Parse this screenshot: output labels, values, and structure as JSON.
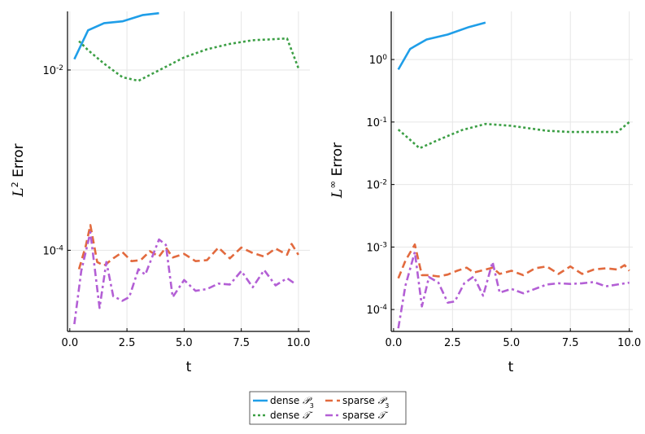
{
  "chart_data": [
    {
      "type": "line",
      "yscale": "log",
      "xlim": [
        -0.1,
        10.5
      ],
      "ylim_exp": [
        -4.9,
        -1.35
      ],
      "xticks": [
        0.0,
        2.5,
        5.0,
        7.5,
        10.0
      ],
      "xtick_labels": [
        "0.0",
        "2.5",
        "5.0",
        "7.5",
        "10.0"
      ],
      "yticks_exp": [
        -4,
        -2
      ],
      "ytick_labels": [
        "10",
        "10"
      ],
      "ytick_exp_labels": [
        "-4",
        "-2"
      ],
      "xlabel": "t",
      "ylabel_base": "L",
      "ylabel_sup": "2",
      "ylabel_rest": " Error",
      "grid": true,
      "series": [
        {
          "name": "dense P3",
          "color": "#1f9ee8",
          "dash": "solid",
          "x": [
            0.2,
            0.8,
            1.5,
            2.3,
            3.2,
            3.9
          ],
          "logy": [
            -1.88,
            -1.56,
            -1.48,
            -1.46,
            -1.39,
            -1.37
          ]
        },
        {
          "name": "dense T",
          "color": "#3c9f45",
          "dash": "dot",
          "x": [
            0.4,
            0.8,
            1.5,
            2.3,
            3.0,
            4.0,
            5.0,
            6.0,
            7.0,
            8.0,
            8.8,
            9.5,
            10.0
          ],
          "logy": [
            -1.68,
            -1.78,
            -1.93,
            -2.08,
            -2.12,
            -1.99,
            -1.86,
            -1.77,
            -1.71,
            -1.67,
            -1.66,
            -1.65,
            -1.98
          ]
        },
        {
          "name": "sparse P3",
          "color": "#e26a3e",
          "dash": "dash",
          "x": [
            0.4,
            0.7,
            0.9,
            1.2,
            1.5,
            1.9,
            2.3,
            2.7,
            3.1,
            3.5,
            3.9,
            4.2,
            4.5,
            5.0,
            5.5,
            6.0,
            6.5,
            7.0,
            7.5,
            8.0,
            8.5,
            9.0,
            9.5,
            9.7,
            10.0
          ],
          "logy": [
            -4.21,
            -3.95,
            -3.72,
            -4.13,
            -4.17,
            -4.09,
            -4.02,
            -4.12,
            -4.11,
            -4.01,
            -4.07,
            -3.97,
            -4.08,
            -4.04,
            -4.12,
            -4.11,
            -3.97,
            -4.09,
            -3.97,
            -4.03,
            -4.07,
            -3.98,
            -4.05,
            -3.93,
            -4.05
          ]
        },
        {
          "name": "sparse T",
          "color": "#b35fd5",
          "dash": "dashdot",
          "x": [
            0.2,
            0.5,
            0.9,
            1.3,
            1.6,
            1.9,
            2.3,
            2.6,
            3.0,
            3.3,
            3.9,
            4.2,
            4.5,
            5.0,
            5.5,
            6.0,
            6.5,
            7.0,
            7.5,
            8.0,
            8.5,
            9.0,
            9.5,
            9.9
          ],
          "logy": [
            -4.82,
            -4.23,
            -3.8,
            -4.64,
            -4.13,
            -4.51,
            -4.56,
            -4.52,
            -4.21,
            -4.27,
            -3.88,
            -3.94,
            -4.52,
            -4.33,
            -4.45,
            -4.43,
            -4.37,
            -4.38,
            -4.23,
            -4.41,
            -4.22,
            -4.39,
            -4.31,
            -4.38
          ]
        }
      ]
    },
    {
      "type": "line",
      "yscale": "log",
      "xlim": [
        -0.1,
        10.15
      ],
      "ylim_exp": [
        -4.35,
        0.77
      ],
      "xticks": [
        0.0,
        2.5,
        5.0,
        7.5,
        10.0
      ],
      "xtick_labels": [
        "0.0",
        "2.5",
        "5.0",
        "7.5",
        "10.0"
      ],
      "yticks_exp": [
        -4,
        -3,
        -2,
        -1,
        0
      ],
      "ytick_labels": [
        "10",
        "10",
        "10",
        "10",
        "10"
      ],
      "ytick_exp_labels": [
        "-4",
        "-3",
        "-2",
        "-1",
        "0"
      ],
      "xlabel": "t",
      "ylabel_base": "L",
      "ylabel_sup": "∞",
      "ylabel_rest": " Error",
      "grid": true,
      "series": [
        {
          "name": "dense P3",
          "color": "#1f9ee8",
          "dash": "solid",
          "x": [
            0.2,
            0.7,
            1.4,
            2.3,
            3.2,
            3.9
          ],
          "logy": [
            -0.16,
            0.17,
            0.32,
            0.4,
            0.52,
            0.59
          ]
        },
        {
          "name": "dense T",
          "color": "#3c9f45",
          "dash": "dot",
          "x": [
            0.2,
            0.6,
            1.1,
            2.0,
            2.9,
            3.9,
            5.0,
            6.5,
            7.5,
            8.5,
            9.5,
            10.0
          ],
          "logy": [
            -1.12,
            -1.25,
            -1.42,
            -1.27,
            -1.13,
            -1.03,
            -1.06,
            -1.14,
            -1.16,
            -1.16,
            -1.16,
            -1.0
          ]
        },
        {
          "name": "sparse P3",
          "color": "#e26a3e",
          "dash": "dash",
          "x": [
            0.2,
            0.5,
            0.9,
            1.2,
            1.5,
            1.9,
            2.3,
            2.7,
            3.1,
            3.4,
            3.8,
            4.2,
            4.5,
            5.0,
            5.5,
            6.0,
            6.5,
            7.0,
            7.5,
            8.0,
            8.5,
            9.0,
            9.5,
            9.8,
            10.0
          ],
          "logy": [
            -3.5,
            -3.22,
            -2.96,
            -3.45,
            -3.45,
            -3.47,
            -3.44,
            -3.38,
            -3.33,
            -3.41,
            -3.37,
            -3.33,
            -3.43,
            -3.38,
            -3.45,
            -3.34,
            -3.31,
            -3.43,
            -3.31,
            -3.43,
            -3.36,
            -3.34,
            -3.36,
            -3.29,
            -3.38
          ]
        },
        {
          "name": "sparse T",
          "color": "#b35fd5",
          "dash": "dashdot",
          "x": [
            0.2,
            0.5,
            0.9,
            1.2,
            1.5,
            1.9,
            2.3,
            2.6,
            3.0,
            3.4,
            3.8,
            4.2,
            4.5,
            5.0,
            5.5,
            6.0,
            6.5,
            7.0,
            7.5,
            8.0,
            8.5,
            9.0,
            9.5,
            10.0
          ],
          "logy": [
            -4.3,
            -3.62,
            -3.08,
            -3.95,
            -3.48,
            -3.57,
            -3.89,
            -3.87,
            -3.58,
            -3.47,
            -3.78,
            -3.24,
            -3.73,
            -3.67,
            -3.74,
            -3.67,
            -3.6,
            -3.58,
            -3.59,
            -3.58,
            -3.56,
            -3.63,
            -3.6,
            -3.57
          ]
        }
      ]
    }
  ],
  "legend": {
    "placement": "bottom-center",
    "entries": [
      {
        "label": "dense ",
        "sym": "𝒫",
        "sub": "3",
        "color": "#1f9ee8",
        "dash": "solid"
      },
      {
        "label": "sparse ",
        "sym": "𝒫",
        "sub": "3",
        "color": "#e26a3e",
        "dash": "dash"
      },
      {
        "label": "dense ",
        "sym": "𝒯",
        "sub": "",
        "color": "#3c9f45",
        "dash": "dot"
      },
      {
        "label": "sparse ",
        "sym": "𝒯",
        "sub": "",
        "color": "#b35fd5",
        "dash": "dashdot"
      }
    ]
  }
}
